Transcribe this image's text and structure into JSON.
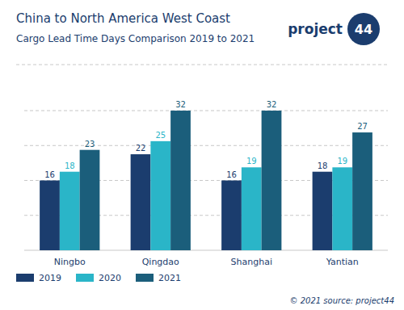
{
  "chart_data": {
    "type": "bar",
    "title": "China to North America West Coast",
    "subtitle": "Cargo Lead Time Days Comparison 2019 to 2021",
    "categories": [
      "Ningbo",
      "Qingdao",
      "Shanghai",
      "Yantian"
    ],
    "series": [
      {
        "name": "2019",
        "color": "#1b3d6e",
        "values": [
          16,
          22,
          16,
          18
        ]
      },
      {
        "name": "2020",
        "color": "#2ab5c8",
        "values": [
          18,
          25,
          19,
          19
        ]
      },
      {
        "name": "2021",
        "color": "#1b5e7b",
        "values": [
          23,
          32,
          32,
          27
        ]
      }
    ],
    "ylim": [
      0,
      37
    ],
    "yticks": [
      8,
      16,
      24,
      32
    ],
    "grid": true,
    "tick_labels": "x",
    "data_labels": true,
    "legend": "bottom",
    "annotations": [
      "project",
      "44",
      "© 2021 source: project44"
    ]
  }
}
